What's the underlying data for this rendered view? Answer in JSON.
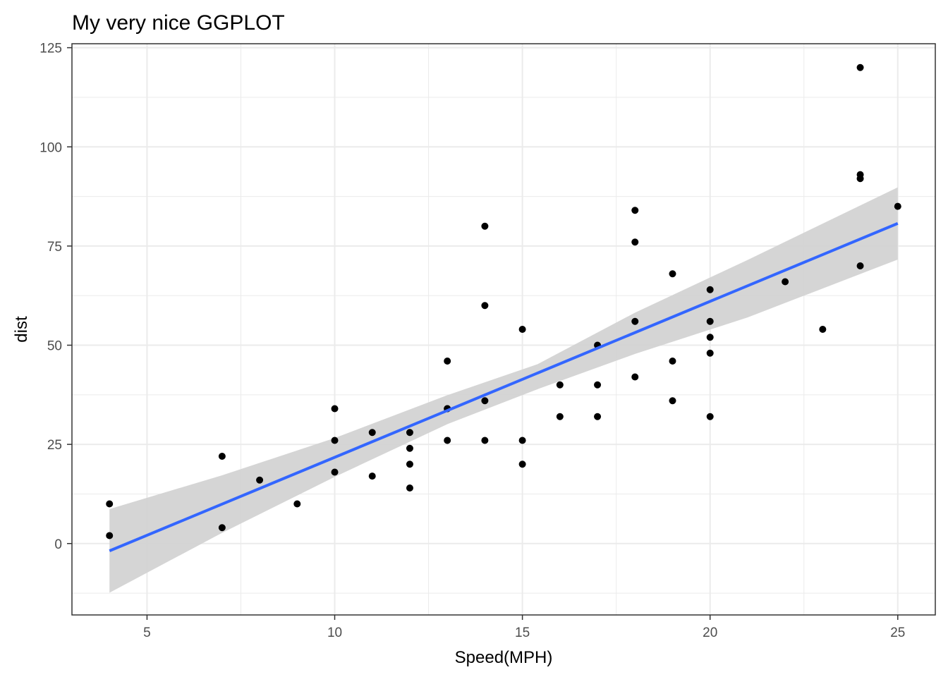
{
  "chart_data": {
    "type": "scatter",
    "title": "My very nice GGPLOT",
    "xlabel": "Speed(MPH)",
    "ylabel": "dist",
    "xlim": [
      3,
      26
    ],
    "ylim": [
      -18,
      126
    ],
    "x_ticks": [
      5,
      10,
      15,
      20,
      25
    ],
    "y_ticks": [
      0,
      25,
      50,
      75,
      100,
      125
    ],
    "grid": true,
    "legend": "none",
    "colors": {
      "points": "#000000",
      "fit_line": "#3366ff",
      "confidence_band": "#d3d3d3",
      "grid": "#ebebeb",
      "panel_border": "#333333"
    },
    "points": [
      {
        "x": 4,
        "y": 2
      },
      {
        "x": 4,
        "y": 10
      },
      {
        "x": 7,
        "y": 4
      },
      {
        "x": 7,
        "y": 22
      },
      {
        "x": 8,
        "y": 16
      },
      {
        "x": 9,
        "y": 10
      },
      {
        "x": 10,
        "y": 18
      },
      {
        "x": 10,
        "y": 26
      },
      {
        "x": 10,
        "y": 34
      },
      {
        "x": 11,
        "y": 17
      },
      {
        "x": 11,
        "y": 28
      },
      {
        "x": 12,
        "y": 14
      },
      {
        "x": 12,
        "y": 20
      },
      {
        "x": 12,
        "y": 24
      },
      {
        "x": 12,
        "y": 28
      },
      {
        "x": 13,
        "y": 26
      },
      {
        "x": 13,
        "y": 34
      },
      {
        "x": 13,
        "y": 34
      },
      {
        "x": 13,
        "y": 46
      },
      {
        "x": 14,
        "y": 26
      },
      {
        "x": 14,
        "y": 36
      },
      {
        "x": 14,
        "y": 60
      },
      {
        "x": 14,
        "y": 80
      },
      {
        "x": 15,
        "y": 20
      },
      {
        "x": 15,
        "y": 26
      },
      {
        "x": 15,
        "y": 54
      },
      {
        "x": 16,
        "y": 32
      },
      {
        "x": 16,
        "y": 40
      },
      {
        "x": 17,
        "y": 32
      },
      {
        "x": 17,
        "y": 40
      },
      {
        "x": 17,
        "y": 50
      },
      {
        "x": 18,
        "y": 42
      },
      {
        "x": 18,
        "y": 56
      },
      {
        "x": 18,
        "y": 76
      },
      {
        "x": 18,
        "y": 84
      },
      {
        "x": 19,
        "y": 36
      },
      {
        "x": 19,
        "y": 46
      },
      {
        "x": 19,
        "y": 68
      },
      {
        "x": 20,
        "y": 32
      },
      {
        "x": 20,
        "y": 48
      },
      {
        "x": 20,
        "y": 52
      },
      {
        "x": 20,
        "y": 56
      },
      {
        "x": 20,
        "y": 64
      },
      {
        "x": 22,
        "y": 66
      },
      {
        "x": 23,
        "y": 54
      },
      {
        "x": 24,
        "y": 70
      },
      {
        "x": 24,
        "y": 92
      },
      {
        "x": 24,
        "y": 93
      },
      {
        "x": 24,
        "y": 120
      },
      {
        "x": 25,
        "y": 85
      }
    ],
    "fit": {
      "method": "linear",
      "line": [
        {
          "x": 4,
          "y": -1.85
        },
        {
          "x": 25,
          "y": 80.7
        }
      ],
      "band": [
        {
          "x": 4,
          "lower": -12.4,
          "upper": 8.7
        },
        {
          "x": 7,
          "lower": 2.7,
          "upper": 17.2
        },
        {
          "x": 10,
          "lower": 16.8,
          "upper": 26.6
        },
        {
          "x": 13,
          "lower": 30.1,
          "upper": 37.4
        },
        {
          "x": 15.4,
          "lower": 38.9,
          "upper": 45.2
        },
        {
          "x": 18,
          "lower": 47.8,
          "upper": 58.2
        },
        {
          "x": 21,
          "lower": 57.0,
          "upper": 71.5
        },
        {
          "x": 25,
          "lower": 71.6,
          "upper": 89.8
        }
      ]
    }
  }
}
